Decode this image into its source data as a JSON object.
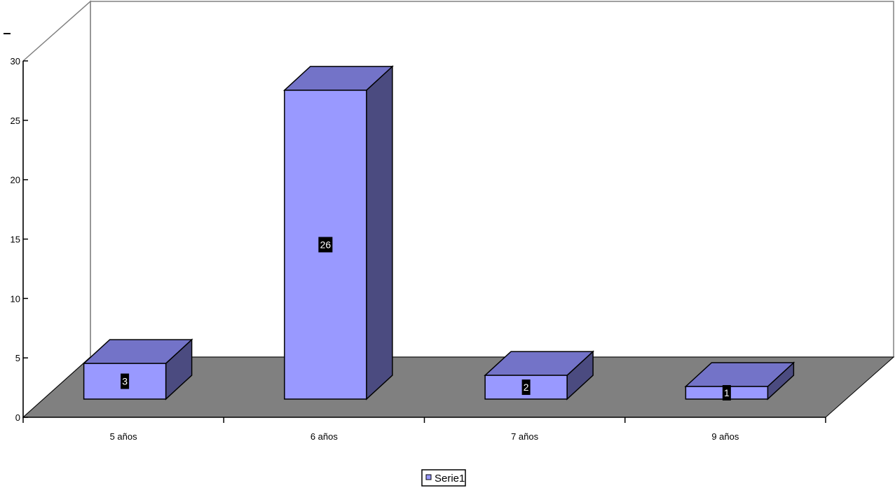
{
  "chart_data": {
    "type": "bar",
    "categories": [
      "5 años",
      "6 años",
      "7 años",
      "9 años"
    ],
    "series": [
      {
        "name": "Serie1",
        "values": [
          3,
          26,
          2,
          1
        ]
      }
    ],
    "data_labels": [
      "3",
      "26",
      "2",
      "1"
    ],
    "y_ticks": [
      "0",
      "5",
      "10",
      "15",
      "20",
      "25",
      "30"
    ],
    "ylim": [
      0,
      30
    ],
    "legend": {
      "label": "Serie1",
      "placement": "bottom-center"
    },
    "style": "3d-column",
    "colors": {
      "bar_front": "#9999ff",
      "bar_top": "#7373c8",
      "bar_side": "#4b4b80",
      "floor": "#808080",
      "wall": "#ffffff",
      "label_bg": "#000000"
    }
  }
}
